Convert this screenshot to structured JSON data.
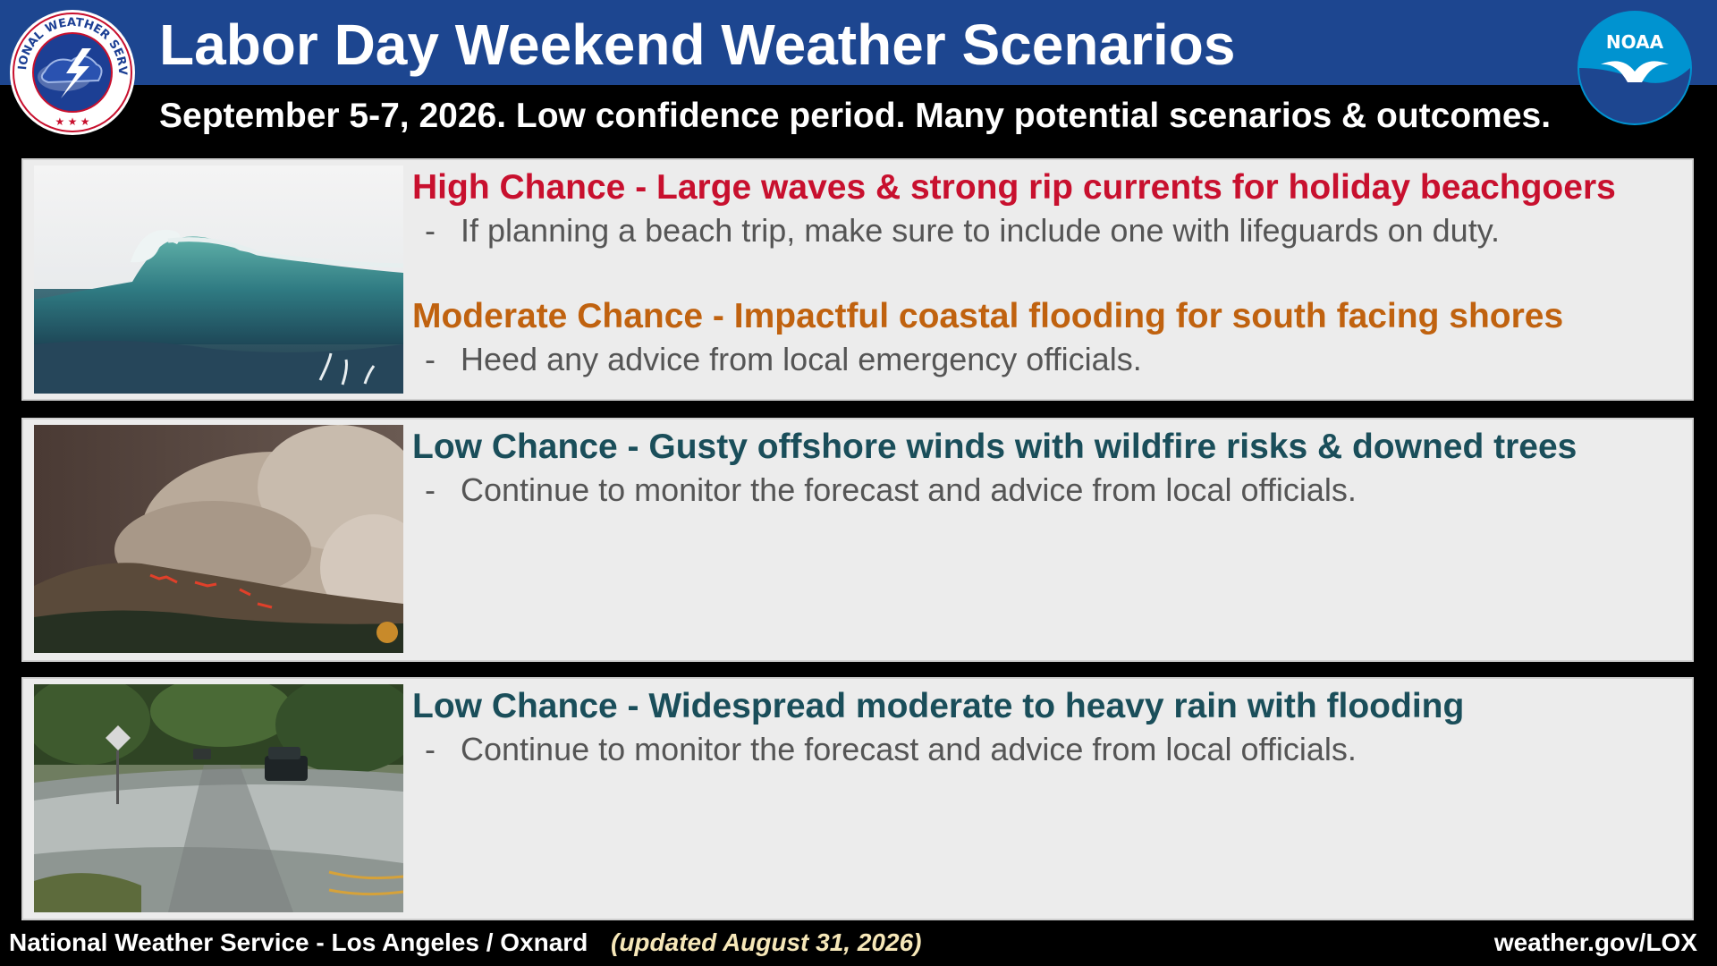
{
  "header": {
    "title": "Labor Day Weekend Weather Scenarios",
    "subtitle": "September 5-7, 2026. Low confidence period. Many potential scenarios & outcomes.",
    "nws_logo_text": "NATIONAL WEATHER SERVICE",
    "noaa_logo_text": "NOAA"
  },
  "scenarios": [
    {
      "photo": "large-ocean-wave",
      "items": [
        {
          "heading": "High Chance - Large waves & strong rip currents for holiday beachgoers",
          "heading_color": "#c8102e",
          "bullet": "If planning a beach trip, make sure to include one with lifeguards on duty."
        },
        {
          "heading": "Moderate Chance - Impactful coastal flooding for south facing shores",
          "heading_color": "#c0620f",
          "bullet": "Heed any advice from local emergency officials."
        }
      ]
    },
    {
      "photo": "wildfire-smoke-hillside",
      "items": [
        {
          "heading": "Low Chance - Gusty offshore winds with wildfire risks & downed trees",
          "heading_color": "#1a4e5a",
          "bullet": "Continue to monitor the forecast and advice from local officials."
        }
      ]
    },
    {
      "photo": "flooded-road-vehicle",
      "items": [
        {
          "heading": "Low Chance - Widespread moderate to heavy rain with flooding",
          "heading_color": "#1a4e5a",
          "bullet": "Continue to monitor the forecast and advice from local officials."
        }
      ]
    }
  ],
  "footer": {
    "office": "National Weather Service - Los Angeles / Oxnard",
    "updated": "(updated August 31, 2026)",
    "website": "weather.gov/LOX"
  }
}
